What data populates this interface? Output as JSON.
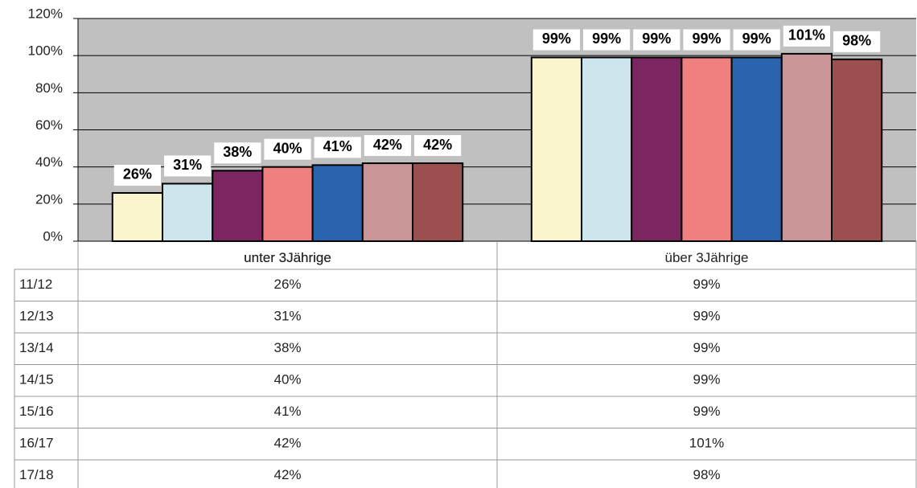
{
  "chart_data": {
    "type": "bar",
    "categories": [
      "unter 3Jährige",
      "über 3Jährige"
    ],
    "series": [
      {
        "name": "11/12",
        "color": "#faf5cc",
        "values": [
          26,
          99
        ],
        "value_labels": [
          "26%",
          "99%"
        ]
      },
      {
        "name": "12/13",
        "color": "#cde6ee",
        "values": [
          31,
          99
        ],
        "value_labels": [
          "31%",
          "99%"
        ]
      },
      {
        "name": "13/14",
        "color": "#7b2660",
        "values": [
          38,
          99
        ],
        "value_labels": [
          "38%",
          "99%"
        ]
      },
      {
        "name": "14/15",
        "color": "#f08080",
        "values": [
          40,
          99
        ],
        "value_labels": [
          "40%",
          "99%"
        ]
      },
      {
        "name": "15/16",
        "color": "#2a64ae",
        "values": [
          41,
          99
        ],
        "value_labels": [
          "41%",
          "99%"
        ]
      },
      {
        "name": "16/17",
        "color": "#c99597",
        "values": [
          42,
          101
        ],
        "value_labels": [
          "42%",
          "101%"
        ]
      },
      {
        "name": "17/18",
        "color": "#9c4f4f",
        "values": [
          42,
          98
        ],
        "value_labels": [
          "42%",
          "98%"
        ]
      }
    ],
    "ylim": [
      0,
      120
    ],
    "yticks": [
      {
        "value": 0,
        "label": "0%"
      },
      {
        "value": 20,
        "label": "20%"
      },
      {
        "value": 40,
        "label": "40%"
      },
      {
        "value": 60,
        "label": "60%"
      },
      {
        "value": 80,
        "label": "80%"
      },
      {
        "value": 100,
        "label": "100%"
      },
      {
        "value": 120,
        "label": "120%"
      }
    ],
    "grid": true,
    "background": "#c0c0c0"
  }
}
